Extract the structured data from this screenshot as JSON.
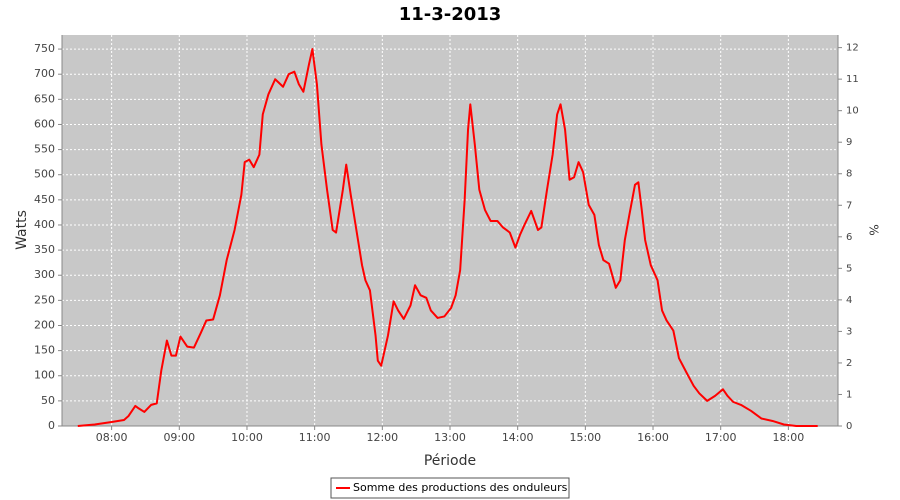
{
  "chart_data": {
    "type": "line",
    "title": "11-3-2013",
    "x_label": "Période",
    "y_label": "Watts",
    "y2_label": "%",
    "x": [
      "07:30",
      "07:45",
      "08:00",
      "08:11",
      "08:15",
      "08:21",
      "08:24",
      "08:29",
      "08:35",
      "08:40",
      "08:44",
      "08:49",
      "08:53",
      "08:57",
      "09:01",
      "09:07",
      "09:13",
      "09:19",
      "09:24",
      "09:30",
      "09:36",
      "09:42",
      "09:49",
      "09:55",
      "09:58",
      "10:02",
      "10:06",
      "10:11",
      "10:14",
      "10:19",
      "10:25",
      "10:32",
      "10:37",
      "10:42",
      "10:46",
      "10:50",
      "10:55",
      "10:58",
      "11:02",
      "11:06",
      "11:11",
      "11:16",
      "11:19",
      "11:25",
      "11:28",
      "11:32",
      "11:37",
      "11:42",
      "11:45",
      "11:49",
      "11:54",
      "11:56",
      "11:59",
      "12:05",
      "12:10",
      "12:14",
      "12:19",
      "12:25",
      "12:29",
      "12:34",
      "12:39",
      "12:43",
      "12:49",
      "12:55",
      "13:01",
      "13:05",
      "13:09",
      "13:13",
      "13:16",
      "13:18",
      "13:22",
      "13:26",
      "13:31",
      "13:36",
      "13:42",
      "13:47",
      "13:53",
      "13:58",
      "14:02",
      "14:06",
      "14:12",
      "14:18",
      "14:21",
      "14:26",
      "14:31",
      "14:35",
      "14:38",
      "14:42",
      "14:46",
      "14:50",
      "14:54",
      "14:58",
      "15:03",
      "15:08",
      "15:12",
      "15:16",
      "15:21",
      "15:27",
      "15:31",
      "15:35",
      "15:39",
      "15:44",
      "15:47",
      "15:50",
      "15:53",
      "15:58",
      "16:04",
      "16:08",
      "16:12",
      "16:18",
      "16:23",
      "16:30",
      "16:36",
      "16:41",
      "16:48",
      "16:55",
      "17:02",
      "17:06",
      "17:11",
      "17:18",
      "17:27",
      "17:36",
      "17:46",
      "17:56",
      "18:07",
      "18:26"
    ],
    "series": [
      {
        "name": "Somme des productions des onduleurs",
        "color": "#ff0000",
        "values": [
          0,
          3,
          8,
          12,
          20,
          40,
          35,
          28,
          42,
          45,
          110,
          170,
          140,
          140,
          178,
          158,
          156,
          185,
          210,
          212,
          260,
          330,
          390,
          460,
          525,
          530,
          515,
          540,
          620,
          660,
          690,
          675,
          700,
          705,
          680,
          665,
          720,
          750,
          680,
          560,
          470,
          390,
          385,
          470,
          520,
          460,
          390,
          320,
          290,
          270,
          180,
          130,
          120,
          180,
          248,
          230,
          213,
          240,
          280,
          260,
          255,
          230,
          215,
          218,
          235,
          260,
          310,
          450,
          590,
          640,
          560,
          470,
          430,
          408,
          408,
          395,
          385,
          355,
          380,
          400,
          428,
          390,
          395,
          470,
          540,
          620,
          640,
          590,
          490,
          495,
          525,
          505,
          440,
          420,
          360,
          330,
          323,
          275,
          290,
          370,
          420,
          480,
          485,
          430,
          370,
          320,
          290,
          230,
          210,
          190,
          135,
          105,
          80,
          65,
          50,
          60,
          73,
          60,
          48,
          42,
          30,
          15,
          10,
          3,
          0,
          0
        ]
      }
    ],
    "xlim": [
      "07:16",
      "18:44"
    ],
    "xticks": [
      "08:00",
      "09:00",
      "10:00",
      "11:00",
      "12:00",
      "13:00",
      "14:00",
      "15:00",
      "16:00",
      "17:00",
      "18:00"
    ],
    "ylim": [
      0,
      778
    ],
    "yticks": [
      0,
      50,
      100,
      150,
      200,
      250,
      300,
      350,
      400,
      450,
      500,
      550,
      600,
      650,
      700,
      750
    ],
    "y2lim": [
      0,
      12.4
    ],
    "y2ticks": [
      0,
      1,
      2,
      3,
      4,
      5,
      6,
      7,
      8,
      9,
      10,
      11,
      12
    ],
    "grid": true
  }
}
